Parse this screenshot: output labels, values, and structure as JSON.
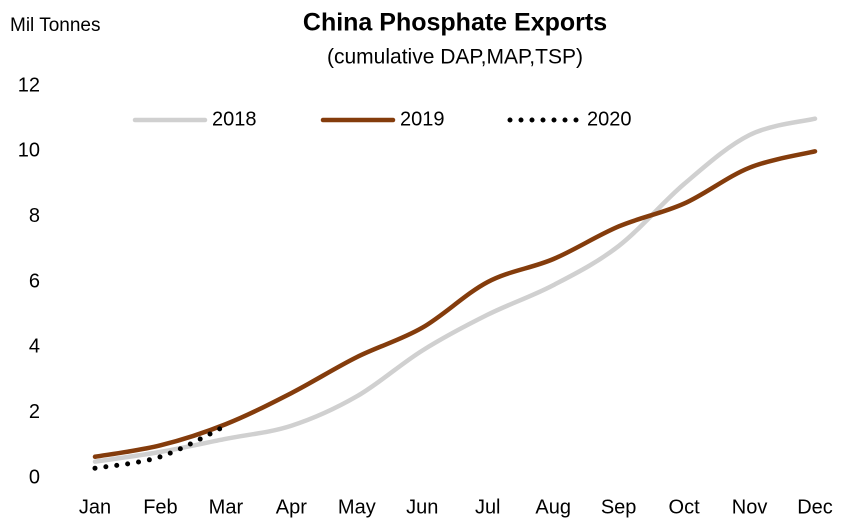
{
  "chart_data": {
    "type": "line",
    "title": "China Phosphate Exports",
    "subtitle": "(cumulative DAP,MAP,TSP)",
    "y_label": "Mil Tonnes",
    "categories": [
      "Jan",
      "Feb",
      "Mar",
      "Apr",
      "May",
      "Jun",
      "Jul",
      "Aug",
      "Sep",
      "Oct",
      "Nov",
      "Dec"
    ],
    "series": [
      {
        "name": "2018",
        "color": "#d0d0d0",
        "style": "solid",
        "values": [
          0.5,
          0.8,
          1.2,
          1.6,
          2.5,
          3.9,
          5.0,
          5.9,
          7.1,
          9.0,
          10.5,
          11.0
        ]
      },
      {
        "name": "2019",
        "color": "#843c0c",
        "style": "solid",
        "values": [
          0.65,
          1.0,
          1.65,
          2.6,
          3.7,
          4.6,
          6.0,
          6.7,
          7.7,
          8.4,
          9.5,
          10.0
        ]
      },
      {
        "name": "2020",
        "color": "#000000",
        "style": "dotted",
        "values": [
          0.3,
          0.65,
          1.6,
          null,
          null,
          null,
          null,
          null,
          null,
          null,
          null,
          null
        ]
      }
    ],
    "ylim": [
      0,
      12
    ],
    "yticks": [
      0,
      2,
      4,
      6,
      8,
      10,
      12
    ],
    "grid": false,
    "legend": "top"
  }
}
